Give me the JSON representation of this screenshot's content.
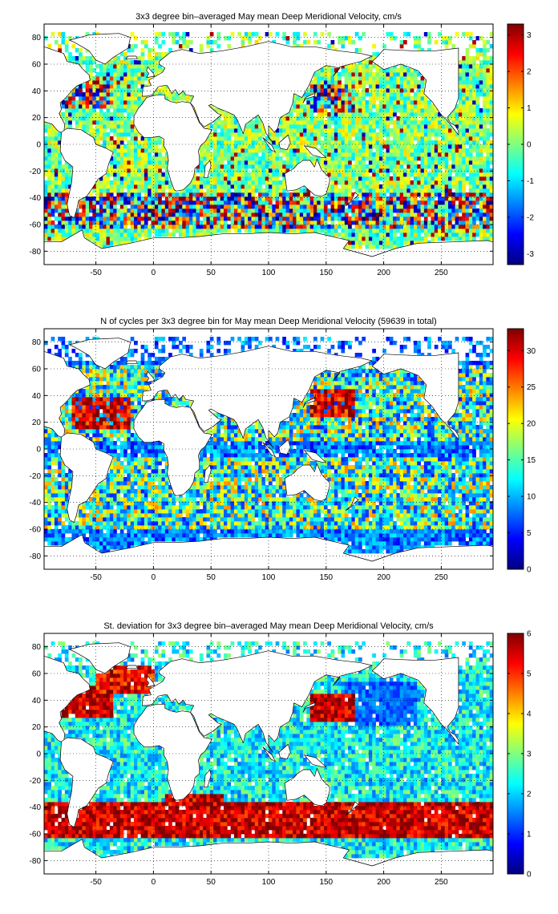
{
  "chart_data": [
    {
      "type": "heatmap",
      "title": "3x3 degree bin–averaged May mean Deep Meridional Velocity, cm/s",
      "xlabel": "",
      "ylabel": "",
      "xlim": [
        -95,
        295
      ],
      "ylim": [
        -90,
        90
      ],
      "xticks": [
        -50,
        0,
        50,
        100,
        150,
        200,
        250
      ],
      "yticks": [
        -80,
        -60,
        -40,
        -20,
        0,
        20,
        40,
        60,
        80
      ],
      "grid": true,
      "colormap": "jet",
      "colorbar": {
        "position": "right",
        "clim": [
          -3.3,
          3.3
        ],
        "ticks": [
          -3,
          -2,
          -1,
          0,
          1,
          2,
          3
        ]
      },
      "bin_size_deg": 3,
      "value_pattern": "mostly near 0 (cyan–yellow) across ocean interiors; strong positive and negative (dark red / dark blue) patches in the Southern Ocean near 40–60S, the Gulf Stream region and the western North Atlantic"
    },
    {
      "type": "heatmap",
      "title": "N of cycles per 3x3 degree bin for May mean Deep Meridional Velocity (59639 in total)",
      "xlabel": "",
      "ylabel": "",
      "xlim": [
        -95,
        295
      ],
      "ylim": [
        -90,
        90
      ],
      "xticks": [
        -50,
        0,
        50,
        100,
        150,
        200,
        250
      ],
      "yticks": [
        -80,
        -60,
        -40,
        -20,
        0,
        20,
        40,
        60,
        80
      ],
      "grid": true,
      "colormap": "jet",
      "colorbar": {
        "position": "right",
        "clim": [
          0,
          33
        ],
        "ticks": [
          0,
          5,
          10,
          15,
          20,
          25,
          30
        ]
      },
      "bin_size_deg": 3,
      "total_cycles": 59639,
      "value_pattern": "highest counts (20–33) in the Kuroshio region of the NW Pacific, the subtropical North Atlantic and scattered mid‑latitude bins; low counts (0–8) along coastlines, the equatorial band and high southern latitudes"
    },
    {
      "type": "heatmap",
      "title": "St. deviation for 3x3 degree bin–averaged May mean Deep Meridional Velocity, cm/s",
      "xlabel": "",
      "ylabel": "",
      "xlim": [
        -95,
        295
      ],
      "ylim": [
        -90,
        90
      ],
      "xticks": [
        -50,
        0,
        50,
        100,
        150,
        200,
        250
      ],
      "yticks": [
        -80,
        -60,
        -40,
        -20,
        0,
        20,
        40,
        60,
        80
      ],
      "grid": true,
      "colormap": "jet",
      "colorbar": {
        "position": "right",
        "clim": [
          0,
          6
        ],
        "ticks": [
          0,
          1,
          2,
          3,
          4,
          5,
          6
        ]
      },
      "bin_size_deg": 3,
      "value_pattern": "very high (5–6) along the Antarctic Circumpolar Current band 40–60S, the Gulf Stream, the Kuroshio and the Agulhas region; low (0–2) in the subtropical gyre interiors, lowest in the central North Pacific"
    }
  ],
  "colors": {
    "land": "#ffffff",
    "frame": "#000000",
    "colormap_stops": [
      "#00008f",
      "#0000ff",
      "#00ffff",
      "#ffff00",
      "#ff0000",
      "#800000"
    ]
  }
}
